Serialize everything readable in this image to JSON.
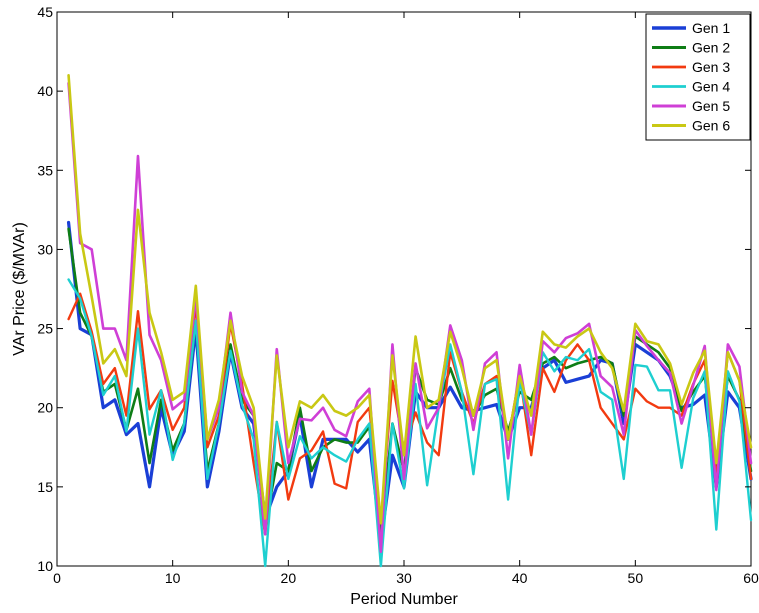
{
  "chart_data": {
    "type": "line",
    "title": "",
    "xlabel": "Period Number",
    "ylabel": "VAr Price ($/MVAr)",
    "xlim": [
      0,
      60
    ],
    "ylim": [
      10,
      45
    ],
    "x_ticks": [
      0,
      10,
      20,
      30,
      40,
      50,
      60
    ],
    "y_ticks": [
      10,
      15,
      20,
      25,
      30,
      35,
      40,
      45
    ],
    "grid": false,
    "legend_position": "top-right",
    "x": [
      1,
      2,
      3,
      4,
      5,
      6,
      7,
      8,
      9,
      10,
      11,
      12,
      13,
      14,
      15,
      16,
      17,
      18,
      19,
      20,
      21,
      22,
      23,
      24,
      25,
      26,
      27,
      28,
      29,
      30,
      31,
      32,
      33,
      34,
      35,
      36,
      37,
      38,
      39,
      40,
      41,
      42,
      43,
      44,
      45,
      46,
      47,
      48,
      49,
      50,
      51,
      52,
      53,
      54,
      55,
      56,
      57,
      58,
      59,
      60
    ],
    "series": [
      {
        "name": "Gen 1",
        "color": "#1a3fd6",
        "width": 3.2,
        "values": [
          31.7,
          25.0,
          24.6,
          20.0,
          20.5,
          18.3,
          19.0,
          15.0,
          20.0,
          17.0,
          18.5,
          25.0,
          15.0,
          18.5,
          23.5,
          20.0,
          19.0,
          13.0,
          15.0,
          16.0,
          19.5,
          15.0,
          18.0,
          18.0,
          18.0,
          17.2,
          18.0,
          11.5,
          17.0,
          15.0,
          21.0,
          20.0,
          20.0,
          21.3,
          20.0,
          19.8,
          20.0,
          20.2,
          18.0,
          20.0,
          20.0,
          22.5,
          23.0,
          21.6,
          21.8,
          22.0,
          23.0,
          22.8,
          19.0,
          24.0,
          23.5,
          23.0,
          22.0,
          20.0,
          20.2,
          20.8,
          15.0,
          21.0,
          20.0,
          15.5
        ]
      },
      {
        "name": "Gen 2",
        "color": "#0e7d16",
        "width": 2.6,
        "values": [
          31.3,
          26.0,
          24.5,
          21.0,
          21.5,
          18.6,
          21.2,
          16.5,
          20.5,
          17.3,
          19.0,
          25.5,
          16.0,
          19.0,
          24.0,
          20.5,
          19.5,
          12.5,
          16.5,
          16.0,
          20.0,
          16.0,
          17.5,
          18.0,
          17.8,
          17.8,
          18.8,
          12.0,
          19.0,
          16.0,
          22.5,
          20.5,
          20.2,
          22.5,
          20.5,
          19.5,
          20.8,
          21.2,
          18.5,
          21.0,
          20.5,
          22.8,
          23.2,
          22.5,
          22.8,
          23.0,
          23.2,
          22.8,
          19.5,
          24.5,
          24.0,
          23.5,
          22.5,
          19.8,
          21.0,
          22.0,
          16.0,
          22.0,
          20.5,
          16.0
        ]
      },
      {
        "name": "Gen 3",
        "color": "#f23a10",
        "width": 2.4,
        "values": [
          25.6,
          27.2,
          24.8,
          21.5,
          22.5,
          19.5,
          26.1,
          19.9,
          21.1,
          18.6,
          20.0,
          26.5,
          17.5,
          19.5,
          25.3,
          21.5,
          16.5,
          12.0,
          19.1,
          14.2,
          16.8,
          17.3,
          18.5,
          15.2,
          14.9,
          19.1,
          20.0,
          12.8,
          21.7,
          17.3,
          19.7,
          17.8,
          17.0,
          23.5,
          21.0,
          19.0,
          21.5,
          22.0,
          18.0,
          22.1,
          17.0,
          22.5,
          21.0,
          23.0,
          24.0,
          23.0,
          20.0,
          19.0,
          18.0,
          21.2,
          20.4,
          20.0,
          20.0,
          19.5,
          21.5,
          23.0,
          15.5,
          23.5,
          21.7,
          15.5
        ]
      },
      {
        "name": "Gen 4",
        "color": "#1ecfd0",
        "width": 2.4,
        "values": [
          28.1,
          26.9,
          24.5,
          20.8,
          22.0,
          18.5,
          25.0,
          18.3,
          21.1,
          16.7,
          19.0,
          25.5,
          15.5,
          19.0,
          23.6,
          20.2,
          18.0,
          10.0,
          19.1,
          15.5,
          18.2,
          16.8,
          17.5,
          17.0,
          16.6,
          18.0,
          19.0,
          10.0,
          19.0,
          14.9,
          21.5,
          15.1,
          20.0,
          24.0,
          21.0,
          15.8,
          21.5,
          21.8,
          14.2,
          21.7,
          18.3,
          23.5,
          22.3,
          23.2,
          23.0,
          23.7,
          21.0,
          20.5,
          15.5,
          22.7,
          22.6,
          21.1,
          21.1,
          16.2,
          20.6,
          22.3,
          12.3,
          22.3,
          20.4,
          12.9
        ]
      },
      {
        "name": "Gen 5",
        "color": "#cf3fd6",
        "width": 2.6,
        "values": [
          40.5,
          30.4,
          30.0,
          25.0,
          25.0,
          23.0,
          35.9,
          24.6,
          23.0,
          19.9,
          20.5,
          27.0,
          18.0,
          20.0,
          26.0,
          21.0,
          19.5,
          12.0,
          23.7,
          16.5,
          19.3,
          19.2,
          20.0,
          18.6,
          18.2,
          20.4,
          21.2,
          10.9,
          24.0,
          15.5,
          22.8,
          18.7,
          20.0,
          25.2,
          23.0,
          18.6,
          22.8,
          23.5,
          16.8,
          22.7,
          18.3,
          24.2,
          23.5,
          24.4,
          24.7,
          25.3,
          22.0,
          21.3,
          18.3,
          24.9,
          23.9,
          23.0,
          22.2,
          19.0,
          21.4,
          23.9,
          14.8,
          24.0,
          22.6,
          16.5
        ]
      },
      {
        "name": "Gen 6",
        "color": "#c9c814",
        "width": 2.6,
        "values": [
          41.0,
          31.0,
          27.0,
          22.8,
          23.7,
          22.0,
          32.5,
          26.0,
          23.5,
          20.5,
          21.0,
          27.7,
          18.0,
          20.5,
          25.5,
          22.0,
          20.0,
          13.0,
          23.3,
          17.5,
          20.4,
          20.0,
          20.8,
          19.8,
          19.5,
          20.0,
          20.8,
          12.7,
          23.3,
          17.0,
          24.5,
          20.0,
          20.5,
          24.8,
          22.5,
          19.5,
          22.5,
          23.0,
          18.0,
          22.0,
          19.5,
          24.8,
          24.0,
          23.8,
          24.5,
          25.0,
          23.5,
          22.5,
          19.8,
          25.3,
          24.2,
          24.0,
          22.8,
          20.2,
          22.2,
          23.6,
          16.5,
          23.5,
          21.7,
          17.5
        ]
      }
    ]
  }
}
